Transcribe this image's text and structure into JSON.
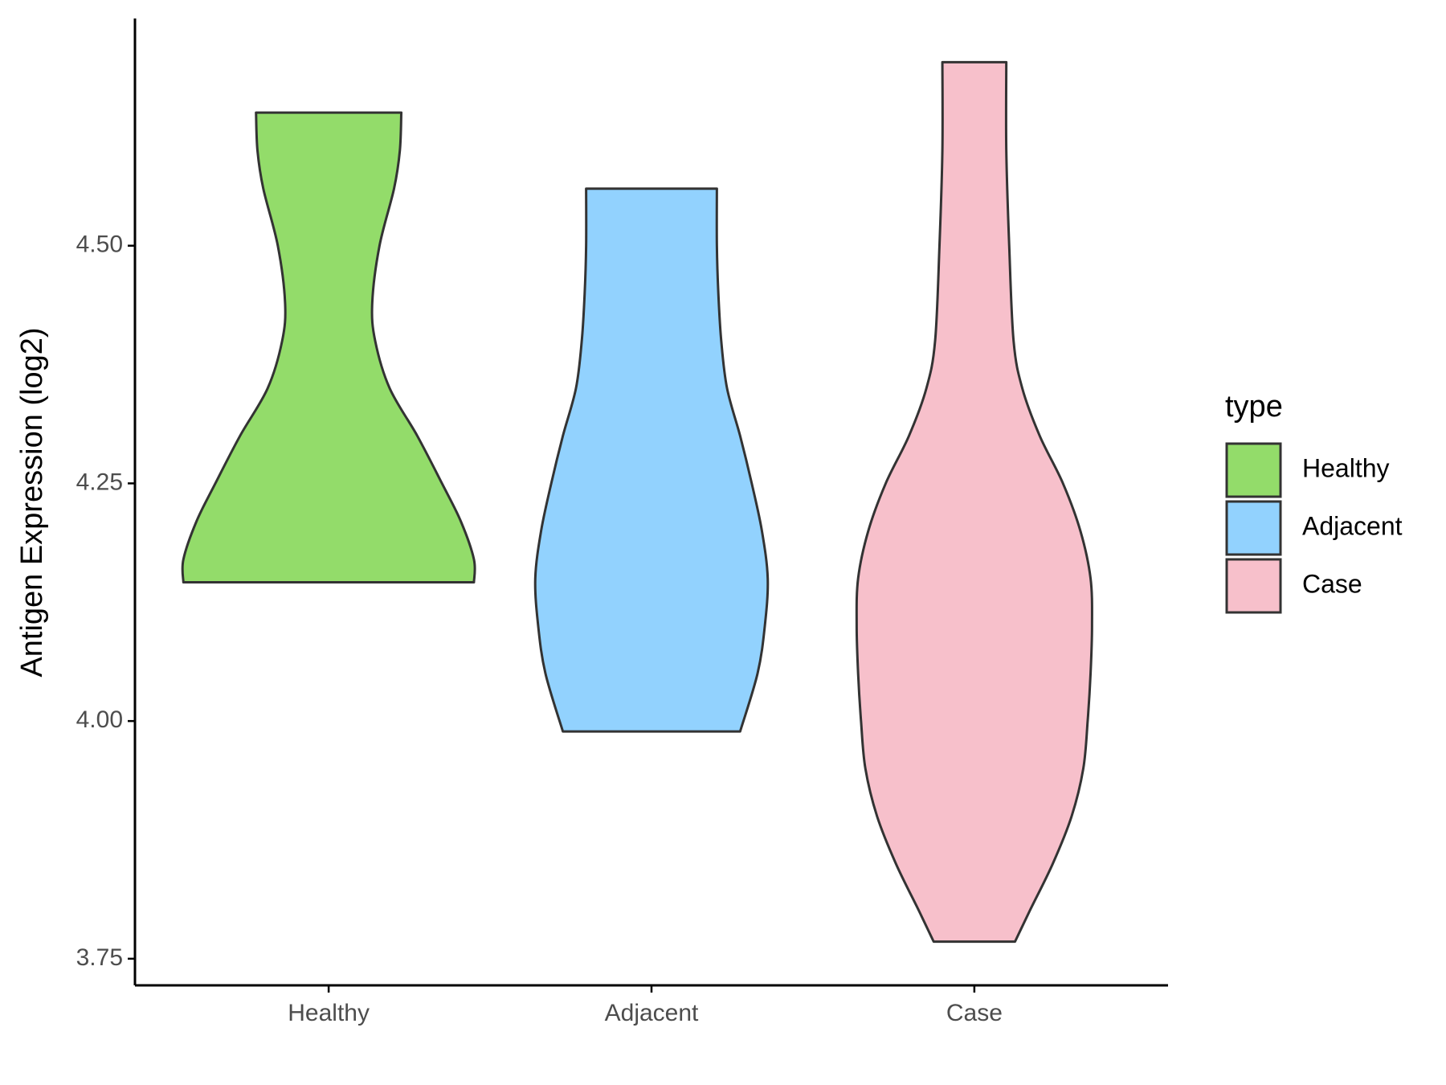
{
  "chart_data": {
    "type": "violin",
    "ylabel": "Antigen Expression (log2)",
    "categories": [
      "Healthy",
      "Adjacent",
      "Case"
    ],
    "ylim": [
      3.722,
      4.739
    ],
    "yticks": [
      {
        "value": 3.75,
        "label": "3.75"
      },
      {
        "value": 4.0,
        "label": "4.00"
      },
      {
        "value": 4.25,
        "label": "4.25"
      },
      {
        "value": 4.5,
        "label": "4.50"
      }
    ],
    "legend_title": "type",
    "series": [
      {
        "name": "Healthy",
        "color": "#93dc6a",
        "y": [
          4.146,
          4.17,
          4.21,
          4.25,
          4.3,
          4.35,
          4.4,
          4.44,
          4.5,
          4.56,
          4.6,
          4.64
        ],
        "density": [
          1.0,
          1.0,
          0.91,
          0.78,
          0.61,
          0.42,
          0.32,
          0.3,
          0.35,
          0.45,
          0.49,
          0.5
        ]
      },
      {
        "name": "Adjacent",
        "color": "#92d2fe",
        "y": [
          3.989,
          4.05,
          4.1,
          4.15,
          4.2,
          4.25,
          4.3,
          4.35,
          4.4,
          4.45,
          4.5,
          4.56
        ],
        "density": [
          0.61,
          0.73,
          0.78,
          0.8,
          0.76,
          0.69,
          0.61,
          0.52,
          0.48,
          0.46,
          0.45,
          0.45
        ]
      },
      {
        "name": "Case",
        "color": "#f7c0cb",
        "y": [
          3.768,
          3.8,
          3.85,
          3.9,
          3.95,
          4.0,
          4.05,
          4.1,
          4.15,
          4.2,
          4.25,
          4.3,
          4.35,
          4.4,
          4.5,
          4.6,
          4.693
        ],
        "density": [
          0.28,
          0.38,
          0.54,
          0.67,
          0.75,
          0.78,
          0.8,
          0.81,
          0.8,
          0.73,
          0.61,
          0.45,
          0.33,
          0.27,
          0.24,
          0.22,
          0.22
        ]
      }
    ]
  }
}
